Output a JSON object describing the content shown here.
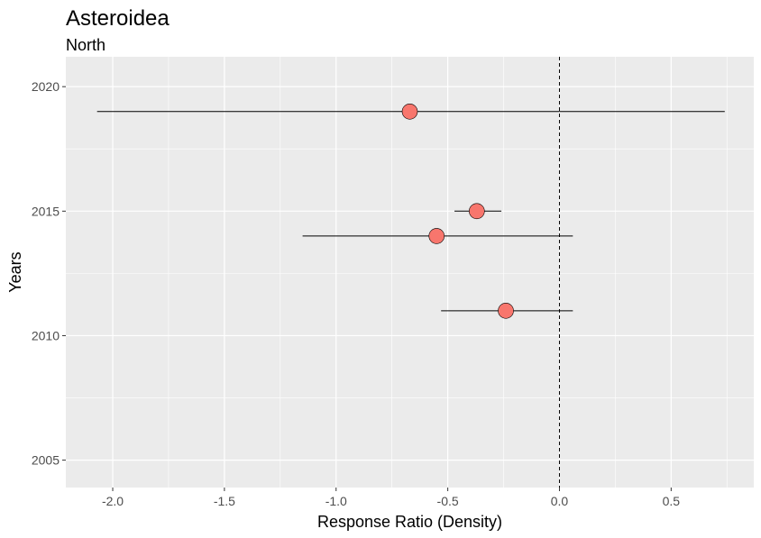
{
  "chart_data": {
    "type": "scatter",
    "title": "Asteroidea",
    "subtitle": "North",
    "xlabel": "Response Ratio (Density)",
    "ylabel": "Years",
    "xlim": [
      -2.21,
      0.87
    ],
    "ylim": [
      2003.9,
      2021.2
    ],
    "xticks": [
      -2.0,
      -1.5,
      -1.0,
      -0.5,
      0.0,
      0.5
    ],
    "xtick_labels": [
      "-2.0",
      "-1.5",
      "-1.0",
      "-0.5",
      "0.0",
      "0.5"
    ],
    "yticks": [
      2005,
      2010,
      2015,
      2020
    ],
    "ytick_labels": [
      "2005",
      "2010",
      "2015",
      "2020"
    ],
    "grid": true,
    "reference_line": {
      "x": 0,
      "style": "dashed"
    },
    "point_color": "#F8766D",
    "points": [
      {
        "year": 2019,
        "value": -0.67,
        "ci_low": -2.07,
        "ci_high": 0.74
      },
      {
        "year": 2015,
        "value": -0.37,
        "ci_low": -0.47,
        "ci_high": -0.26
      },
      {
        "year": 2014,
        "value": -0.55,
        "ci_low": -1.15,
        "ci_high": 0.06
      },
      {
        "year": 2011,
        "value": -0.24,
        "ci_low": -0.53,
        "ci_high": 0.06
      }
    ]
  }
}
